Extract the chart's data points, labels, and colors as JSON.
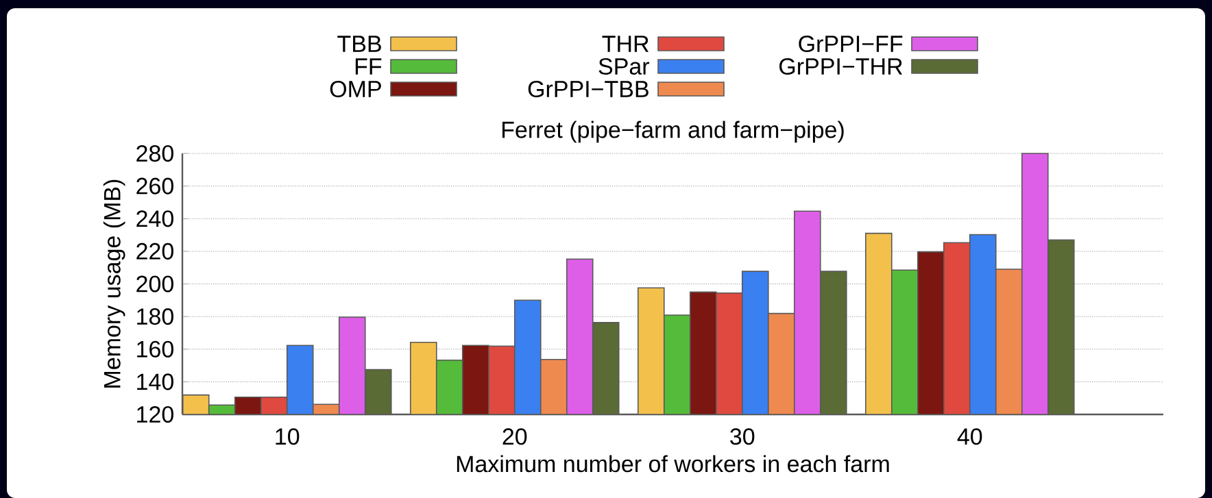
{
  "chart_data": {
    "type": "bar",
    "title": "Ferret (pipe−farm and farm−pipe)",
    "xlabel": "Maximum number of workers in each farm",
    "ylabel": "Memory usage (MB)",
    "categories": [
      "10",
      "20",
      "30",
      "40"
    ],
    "series": [
      {
        "name": "TBB",
        "color": "#f4c04c",
        "values": [
          131.9,
          164.2,
          197.6,
          231
        ]
      },
      {
        "name": "FF",
        "color": "#55bb3a",
        "values": [
          125.8,
          153.3,
          180.9,
          208.5
        ]
      },
      {
        "name": "OMP",
        "color": "#7b1710",
        "values": [
          130.6,
          162.3,
          195,
          219.7
        ]
      },
      {
        "name": "THR",
        "color": "#e0493f",
        "values": [
          130.6,
          161.9,
          194.4,
          225.3
        ]
      },
      {
        "name": "SPar",
        "color": "#3a80f0",
        "values": [
          162.3,
          190,
          207.7,
          230.2
        ]
      },
      {
        "name": "GrPPI−TBB",
        "color": "#ee8a50",
        "values": [
          126.2,
          153.7,
          181.9,
          209
        ]
      },
      {
        "name": "GrPPI−FF",
        "color": "#dd5fe8",
        "values": [
          179.6,
          215.2,
          244.6,
          280
        ]
      },
      {
        "name": "GrPPI−THR",
        "color": "#5a6b36",
        "values": [
          147.5,
          176.3,
          207.7,
          227
        ]
      }
    ],
    "ylim": [
      120,
      280
    ],
    "yticks": [
      120,
      140,
      160,
      180,
      200,
      220,
      240,
      260,
      280
    ],
    "grid": "y",
    "legend": "top"
  }
}
